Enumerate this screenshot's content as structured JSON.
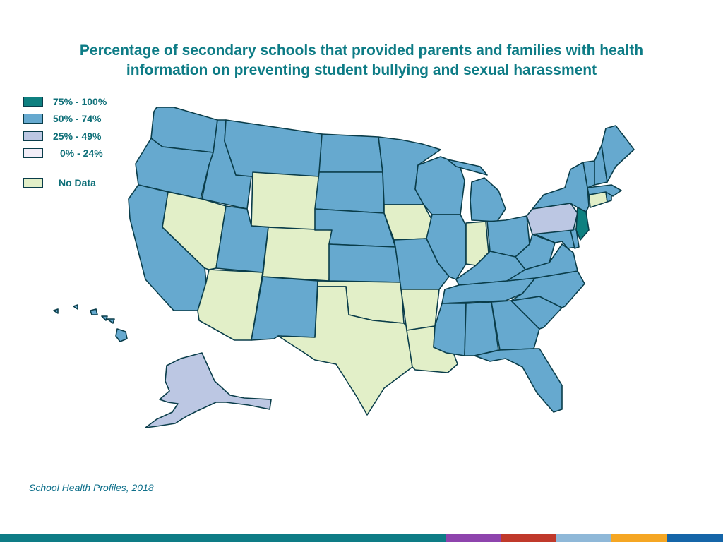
{
  "title": {
    "line1": "Percentage of secondary schools that provided parents and families with health",
    "line2": "information on preventing student bullying and sexual harassment"
  },
  "legend": [
    {
      "label": "75% - 100%",
      "color": "#0e8080"
    },
    {
      "label": "50% - 74%",
      "color": "#66a9cf"
    },
    {
      "label": "25% - 49%",
      "color": "#bcc7e3"
    },
    {
      "label": "0% - 24%",
      "color": "#f3eef8"
    },
    {
      "label": "No Data",
      "color": "#e2efc8"
    }
  ],
  "map": {
    "stroke_color": "#0a3d4a",
    "states": [
      {
        "name": "Washington",
        "class": "50% - 74%"
      },
      {
        "name": "Oregon",
        "class": "50% - 74%"
      },
      {
        "name": "California",
        "class": "50% - 74%"
      },
      {
        "name": "Idaho",
        "class": "50% - 74%"
      },
      {
        "name": "Nevada",
        "class": "No Data"
      },
      {
        "name": "Montana",
        "class": "50% - 74%"
      },
      {
        "name": "Wyoming",
        "class": "No Data"
      },
      {
        "name": "Utah",
        "class": "50% - 74%"
      },
      {
        "name": "Arizona",
        "class": "No Data"
      },
      {
        "name": "Colorado",
        "class": "No Data"
      },
      {
        "name": "New Mexico",
        "class": "50% - 74%"
      },
      {
        "name": "North Dakota",
        "class": "50% - 74%"
      },
      {
        "name": "South Dakota",
        "class": "50% - 74%"
      },
      {
        "name": "Nebraska",
        "class": "50% - 74%"
      },
      {
        "name": "Kansas",
        "class": "50% - 74%"
      },
      {
        "name": "Oklahoma",
        "class": "No Data"
      },
      {
        "name": "Texas",
        "class": "No Data"
      },
      {
        "name": "Minnesota",
        "class": "50% - 74%"
      },
      {
        "name": "Iowa",
        "class": "No Data"
      },
      {
        "name": "Missouri",
        "class": "50% - 74%"
      },
      {
        "name": "Arkansas",
        "class": "No Data"
      },
      {
        "name": "Louisiana",
        "class": "No Data"
      },
      {
        "name": "Wisconsin",
        "class": "50% - 74%"
      },
      {
        "name": "Illinois",
        "class": "50% - 74%"
      },
      {
        "name": "Michigan",
        "class": "50% - 74%"
      },
      {
        "name": "Indiana",
        "class": "No Data"
      },
      {
        "name": "Ohio",
        "class": "50% - 74%"
      },
      {
        "name": "Kentucky",
        "class": "50% - 74%"
      },
      {
        "name": "Tennessee",
        "class": "50% - 74%"
      },
      {
        "name": "Mississippi",
        "class": "50% - 74%"
      },
      {
        "name": "Alabama",
        "class": "50% - 74%"
      },
      {
        "name": "Georgia",
        "class": "50% - 74%"
      },
      {
        "name": "Florida",
        "class": "50% - 74%"
      },
      {
        "name": "South Carolina",
        "class": "50% - 74%"
      },
      {
        "name": "North Carolina",
        "class": "50% - 74%"
      },
      {
        "name": "Virginia",
        "class": "50% - 74%"
      },
      {
        "name": "West Virginia",
        "class": "50% - 74%"
      },
      {
        "name": "Maryland",
        "class": "50% - 74%"
      },
      {
        "name": "Delaware",
        "class": "50% - 74%"
      },
      {
        "name": "Pennsylvania",
        "class": "25% - 49%"
      },
      {
        "name": "New Jersey",
        "class": "75% - 100%"
      },
      {
        "name": "New York",
        "class": "50% - 74%"
      },
      {
        "name": "Connecticut",
        "class": "No Data"
      },
      {
        "name": "Rhode Island",
        "class": "50% - 74%"
      },
      {
        "name": "Massachusetts",
        "class": "50% - 74%"
      },
      {
        "name": "Vermont",
        "class": "50% - 74%"
      },
      {
        "name": "New Hampshire",
        "class": "50% - 74%"
      },
      {
        "name": "Maine",
        "class": "50% - 74%"
      },
      {
        "name": "Alaska",
        "class": "25% - 49%"
      },
      {
        "name": "Hawaii",
        "class": "50% - 74%"
      }
    ]
  },
  "source": "School Health Profiles, 2018",
  "footer_colors": [
    "#0e7c86",
    "#8e44ad",
    "#c0392b",
    "#8fb8d8",
    "#f5a623",
    "#1565a8"
  ]
}
